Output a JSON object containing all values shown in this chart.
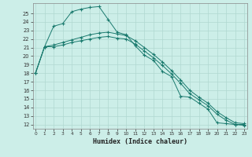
{
  "xlabel": "Humidex (Indice chaleur)",
  "bg_color": "#cceee8",
  "line_color": "#1a7a6e",
  "x_ticks": [
    0,
    1,
    2,
    3,
    4,
    5,
    6,
    7,
    8,
    9,
    10,
    11,
    12,
    13,
    14,
    15,
    16,
    17,
    18,
    19,
    20,
    21,
    22,
    23
  ],
  "y_ticks": [
    12,
    13,
    14,
    15,
    16,
    17,
    18,
    19,
    20,
    21,
    22,
    23,
    24,
    25
  ],
  "ylim": [
    11.5,
    26.2
  ],
  "xlim": [
    -0.3,
    23.3
  ],
  "curve1_x": [
    0,
    1,
    2,
    3,
    4,
    5,
    6,
    7,
    8,
    9,
    10,
    11,
    12,
    13,
    14,
    15,
    16,
    17,
    18,
    19,
    20,
    21,
    22,
    23
  ],
  "curve1_y": [
    18.0,
    21.1,
    23.5,
    23.8,
    25.2,
    25.5,
    25.7,
    25.8,
    24.3,
    22.8,
    22.5,
    21.2,
    20.1,
    19.5,
    18.2,
    17.6,
    15.3,
    15.2,
    14.5,
    13.8,
    12.2,
    12.1,
    12.0,
    12.0
  ],
  "curve2_x": [
    0,
    1,
    2,
    3,
    4,
    5,
    6,
    7,
    8,
    9,
    10,
    11,
    12,
    13,
    14,
    15,
    16,
    17,
    18,
    19,
    20,
    21,
    22,
    23
  ],
  "curve2_y": [
    18.0,
    21.1,
    21.3,
    21.6,
    21.9,
    22.2,
    22.5,
    22.7,
    22.8,
    22.6,
    22.4,
    21.8,
    21.0,
    20.2,
    19.3,
    18.3,
    17.2,
    16.0,
    15.2,
    14.5,
    13.5,
    12.8,
    12.2,
    12.1
  ],
  "curve3_x": [
    0,
    1,
    2,
    3,
    4,
    5,
    6,
    7,
    8,
    9,
    10,
    11,
    12,
    13,
    14,
    15,
    16,
    17,
    18,
    19,
    20,
    21,
    22,
    23
  ],
  "curve3_y": [
    18.0,
    21.1,
    21.1,
    21.3,
    21.6,
    21.8,
    22.0,
    22.2,
    22.3,
    22.1,
    22.0,
    21.4,
    20.6,
    19.8,
    18.9,
    17.9,
    16.8,
    15.6,
    14.9,
    14.2,
    13.2,
    12.5,
    12.0,
    11.9
  ]
}
